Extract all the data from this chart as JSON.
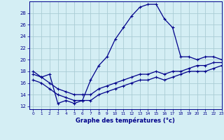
{
  "xlabel": "Graphe des températures (°c)",
  "background_color": "#d4eef4",
  "line_color": "#00008b",
  "grid_color": "#aaccd4",
  "ylim": [
    11.5,
    30
  ],
  "xlim": [
    -0.5,
    23
  ],
  "yticks": [
    12,
    14,
    16,
    18,
    20,
    22,
    24,
    26,
    28
  ],
  "xticks": [
    0,
    1,
    2,
    3,
    4,
    5,
    6,
    7,
    8,
    9,
    10,
    11,
    12,
    13,
    14,
    15,
    16,
    17,
    18,
    19,
    20,
    21,
    22,
    23
  ],
  "curve1_x": [
    0,
    1,
    2,
    3,
    4,
    5,
    6,
    7,
    8,
    9,
    10,
    11,
    12,
    13,
    14,
    15,
    16,
    17,
    18,
    19,
    20,
    21,
    22,
    23
  ],
  "curve1_y": [
    18,
    17,
    17.5,
    12.5,
    13,
    12.5,
    13,
    16.5,
    19,
    20.5,
    23.5,
    25.5,
    27.5,
    29.0,
    29.5,
    29.5,
    27.0,
    25.5,
    20.5,
    20.5,
    20.0,
    20.5,
    20.5,
    20.0
  ],
  "curve2_x": [
    0,
    1,
    2,
    3,
    4,
    5,
    6,
    7,
    8,
    9,
    10,
    11,
    12,
    13,
    14,
    15,
    16,
    17,
    18,
    19,
    20,
    21,
    22,
    23
  ],
  "curve2_y": [
    17.5,
    17.0,
    16.0,
    15.0,
    14.5,
    14.0,
    14.0,
    14.0,
    15.0,
    15.5,
    16.0,
    16.5,
    17.0,
    17.5,
    17.5,
    18.0,
    17.5,
    18.0,
    18.0,
    18.5,
    19.0,
    19.0,
    19.5,
    19.5
  ],
  "curve3_x": [
    0,
    1,
    2,
    3,
    4,
    5,
    6,
    7,
    8,
    9,
    10,
    11,
    12,
    13,
    14,
    15,
    16,
    17,
    18,
    19,
    20,
    21,
    22,
    23
  ],
  "curve3_y": [
    16.5,
    16.0,
    15.0,
    14.0,
    13.5,
    13.0,
    13.0,
    13.0,
    14.0,
    14.5,
    15.0,
    15.5,
    16.0,
    16.5,
    16.5,
    17.0,
    16.5,
    17.0,
    17.5,
    18.0,
    18.0,
    18.0,
    18.5,
    19.0
  ]
}
